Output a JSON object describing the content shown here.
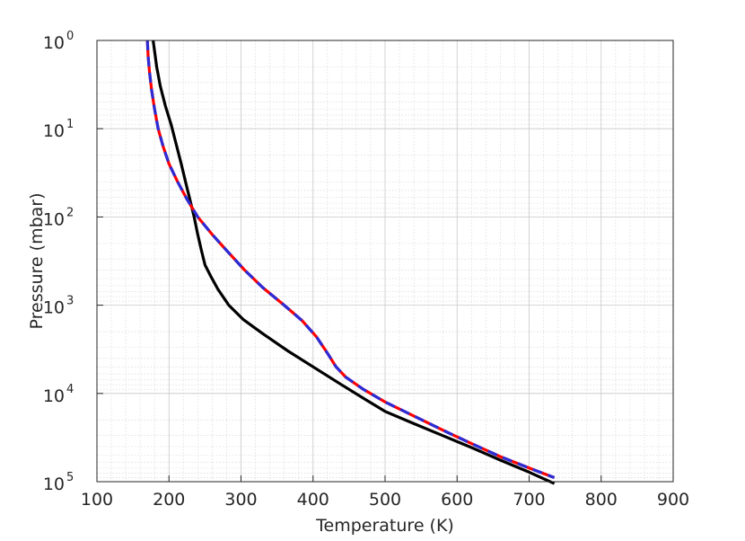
{
  "chart_data": {
    "type": "line",
    "xlabel": "Temperature (K)",
    "ylabel": "Pressure (mbar)",
    "xlim": [
      100,
      900
    ],
    "ylim": [
      1,
      100000
    ],
    "y_scale": "log",
    "y_reversed": true,
    "grid": true,
    "minor_grid": true,
    "x_ticks": [
      100,
      200,
      300,
      400,
      500,
      600,
      700,
      800,
      900
    ],
    "x_tick_labels": [
      "100",
      "200",
      "300",
      "400",
      "500",
      "600",
      "700",
      "800",
      "900"
    ],
    "y_ticks": [
      {
        "value": 1,
        "base": "10",
        "exp": "0"
      },
      {
        "value": 10,
        "base": "10",
        "exp": "1"
      },
      {
        "value": 100,
        "base": "10",
        "exp": "2"
      },
      {
        "value": 1000,
        "base": "10",
        "exp": "3"
      },
      {
        "value": 10000,
        "base": "10",
        "exp": "4"
      },
      {
        "value": 100000,
        "base": "10",
        "exp": "5"
      }
    ],
    "series": [
      {
        "color": "#000000",
        "dash": "solid",
        "x": [
          178,
          183,
          188,
          195,
          203,
          210,
          217,
          223,
          229,
          235,
          240,
          245,
          250,
          258,
          268,
          283,
          303,
          330,
          365,
          400,
          440,
          475,
          500,
          540,
          580,
          620,
          660,
          700,
          735
        ],
        "y": [
          1,
          2,
          3.3,
          5.5,
          9,
          15,
          25,
          40,
          63,
          100,
          158,
          240,
          350,
          470,
          660,
          1000,
          1450,
          2100,
          3300,
          5000,
          8000,
          12000,
          16000,
          22000,
          30000,
          41000,
          57000,
          78000,
          105000
        ]
      },
      {
        "color": "#ff0000",
        "dash": "solid",
        "x": [
          170,
          171,
          173,
          176,
          180,
          185,
          192,
          200,
          212,
          225,
          240,
          260,
          282,
          305,
          330,
          360,
          385,
          405,
          420,
          432,
          445,
          470,
          500,
          540,
          580,
          620,
          660,
          700,
          735
        ],
        "y": [
          1,
          1.5,
          2.3,
          3.7,
          6,
          10,
          16,
          25,
          40,
          63,
          100,
          158,
          250,
          400,
          630,
          1000,
          1500,
          2300,
          3500,
          5000,
          6500,
          9000,
          12500,
          18000,
          26000,
          37000,
          52000,
          70000,
          90000
        ]
      },
      {
        "color": "#2b2bd6",
        "dash": "dashed",
        "x": [
          170,
          171,
          173,
          176,
          180,
          185,
          192,
          200,
          212,
          225,
          240,
          260,
          282,
          305,
          330,
          360,
          385,
          405,
          420,
          432,
          445,
          470,
          500,
          540,
          580,
          620,
          660,
          700,
          735
        ],
        "y": [
          1,
          1.5,
          2.3,
          3.7,
          6,
          10,
          16,
          25,
          40,
          63,
          100,
          158,
          250,
          400,
          630,
          1000,
          1500,
          2300,
          3500,
          5000,
          6500,
          9000,
          12500,
          18000,
          26000,
          37000,
          52000,
          70000,
          90000
        ]
      }
    ]
  }
}
